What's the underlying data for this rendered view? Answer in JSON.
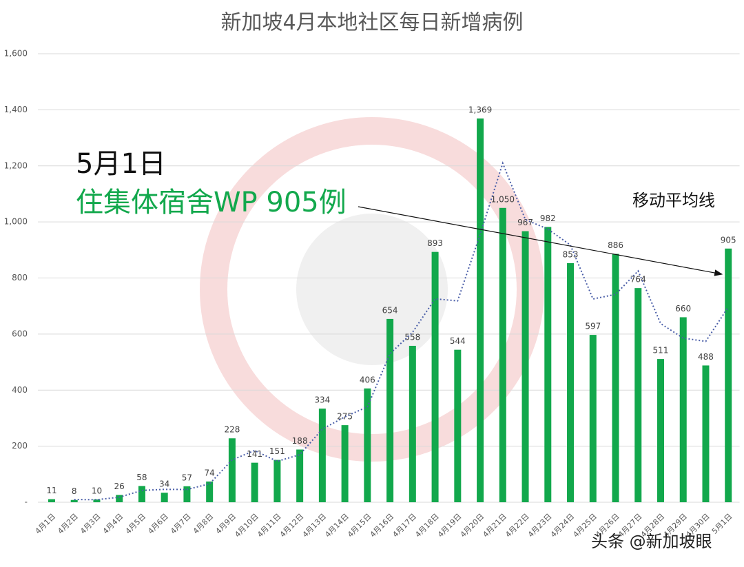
{
  "chart_data": {
    "type": "bar",
    "title": "新加坡4月本地社区每日新增病例",
    "categories": [
      "4月1日",
      "4月2日",
      "4月3日",
      "4月4日",
      "4月5日",
      "4月6日",
      "4月7日",
      "4月8日",
      "4月9日",
      "4月10日",
      "4月11日",
      "4月12日",
      "4月13日",
      "4月14日",
      "4月15日",
      "4月16日",
      "4月17日",
      "4月18日",
      "4月19日",
      "4月20日",
      "4月21日",
      "4月22日",
      "4月23日",
      "4月24日",
      "4月25日",
      "4月26日",
      "4月27日",
      "4月28日",
      "4月29日",
      "4月30日",
      "5月1日"
    ],
    "values": [
      11,
      8,
      10,
      26,
      58,
      34,
      57,
      74,
      228,
      141,
      151,
      188,
      334,
      275,
      406,
      654,
      558,
      893,
      544,
      1369,
      1050,
      967,
      982,
      853,
      597,
      886,
      764,
      511,
      660,
      488,
      905
    ],
    "value_labels": [
      "11",
      "8",
      "10",
      "26",
      "58",
      "34",
      "57",
      "74",
      "228",
      "141",
      "151",
      "188",
      "334",
      "275",
      "406",
      "654",
      "558",
      "893",
      "544",
      "1,369",
      "1,050",
      "967",
      "982",
      "853",
      "597",
      "886",
      "764",
      "511",
      "660",
      "488",
      "905"
    ],
    "color": "#12a84c",
    "moving_average": {
      "name": "移动平均线",
      "color": "#4a5ea8",
      "values": [
        null,
        9.5,
        9,
        18,
        42,
        46,
        45.5,
        65.5,
        151,
        184.5,
        146,
        169.5,
        261,
        304.5,
        340.5,
        530,
        606,
        725.5,
        718.5,
        956.5,
        1209.5,
        1008.5,
        974.5,
        917.5,
        725,
        741.5,
        825,
        637.5,
        585.5,
        574,
        696.5
      ]
    },
    "ylim": [
      0,
      1600
    ],
    "yticks": [
      {
        "value": 0,
        "label": "-"
      },
      200,
      400,
      600,
      800,
      {
        "value": 1000,
        "label": "1,000"
      },
      {
        "value": 1200,
        "label": "1,200"
      },
      {
        "value": 1400,
        "label": "1,400"
      },
      {
        "value": 1600,
        "label": "1,600"
      }
    ],
    "grid": true,
    "annotations": [
      "5月1日",
      "住集体宿舍WP 905例"
    ],
    "watermark": "头条 @新加坡眼"
  }
}
